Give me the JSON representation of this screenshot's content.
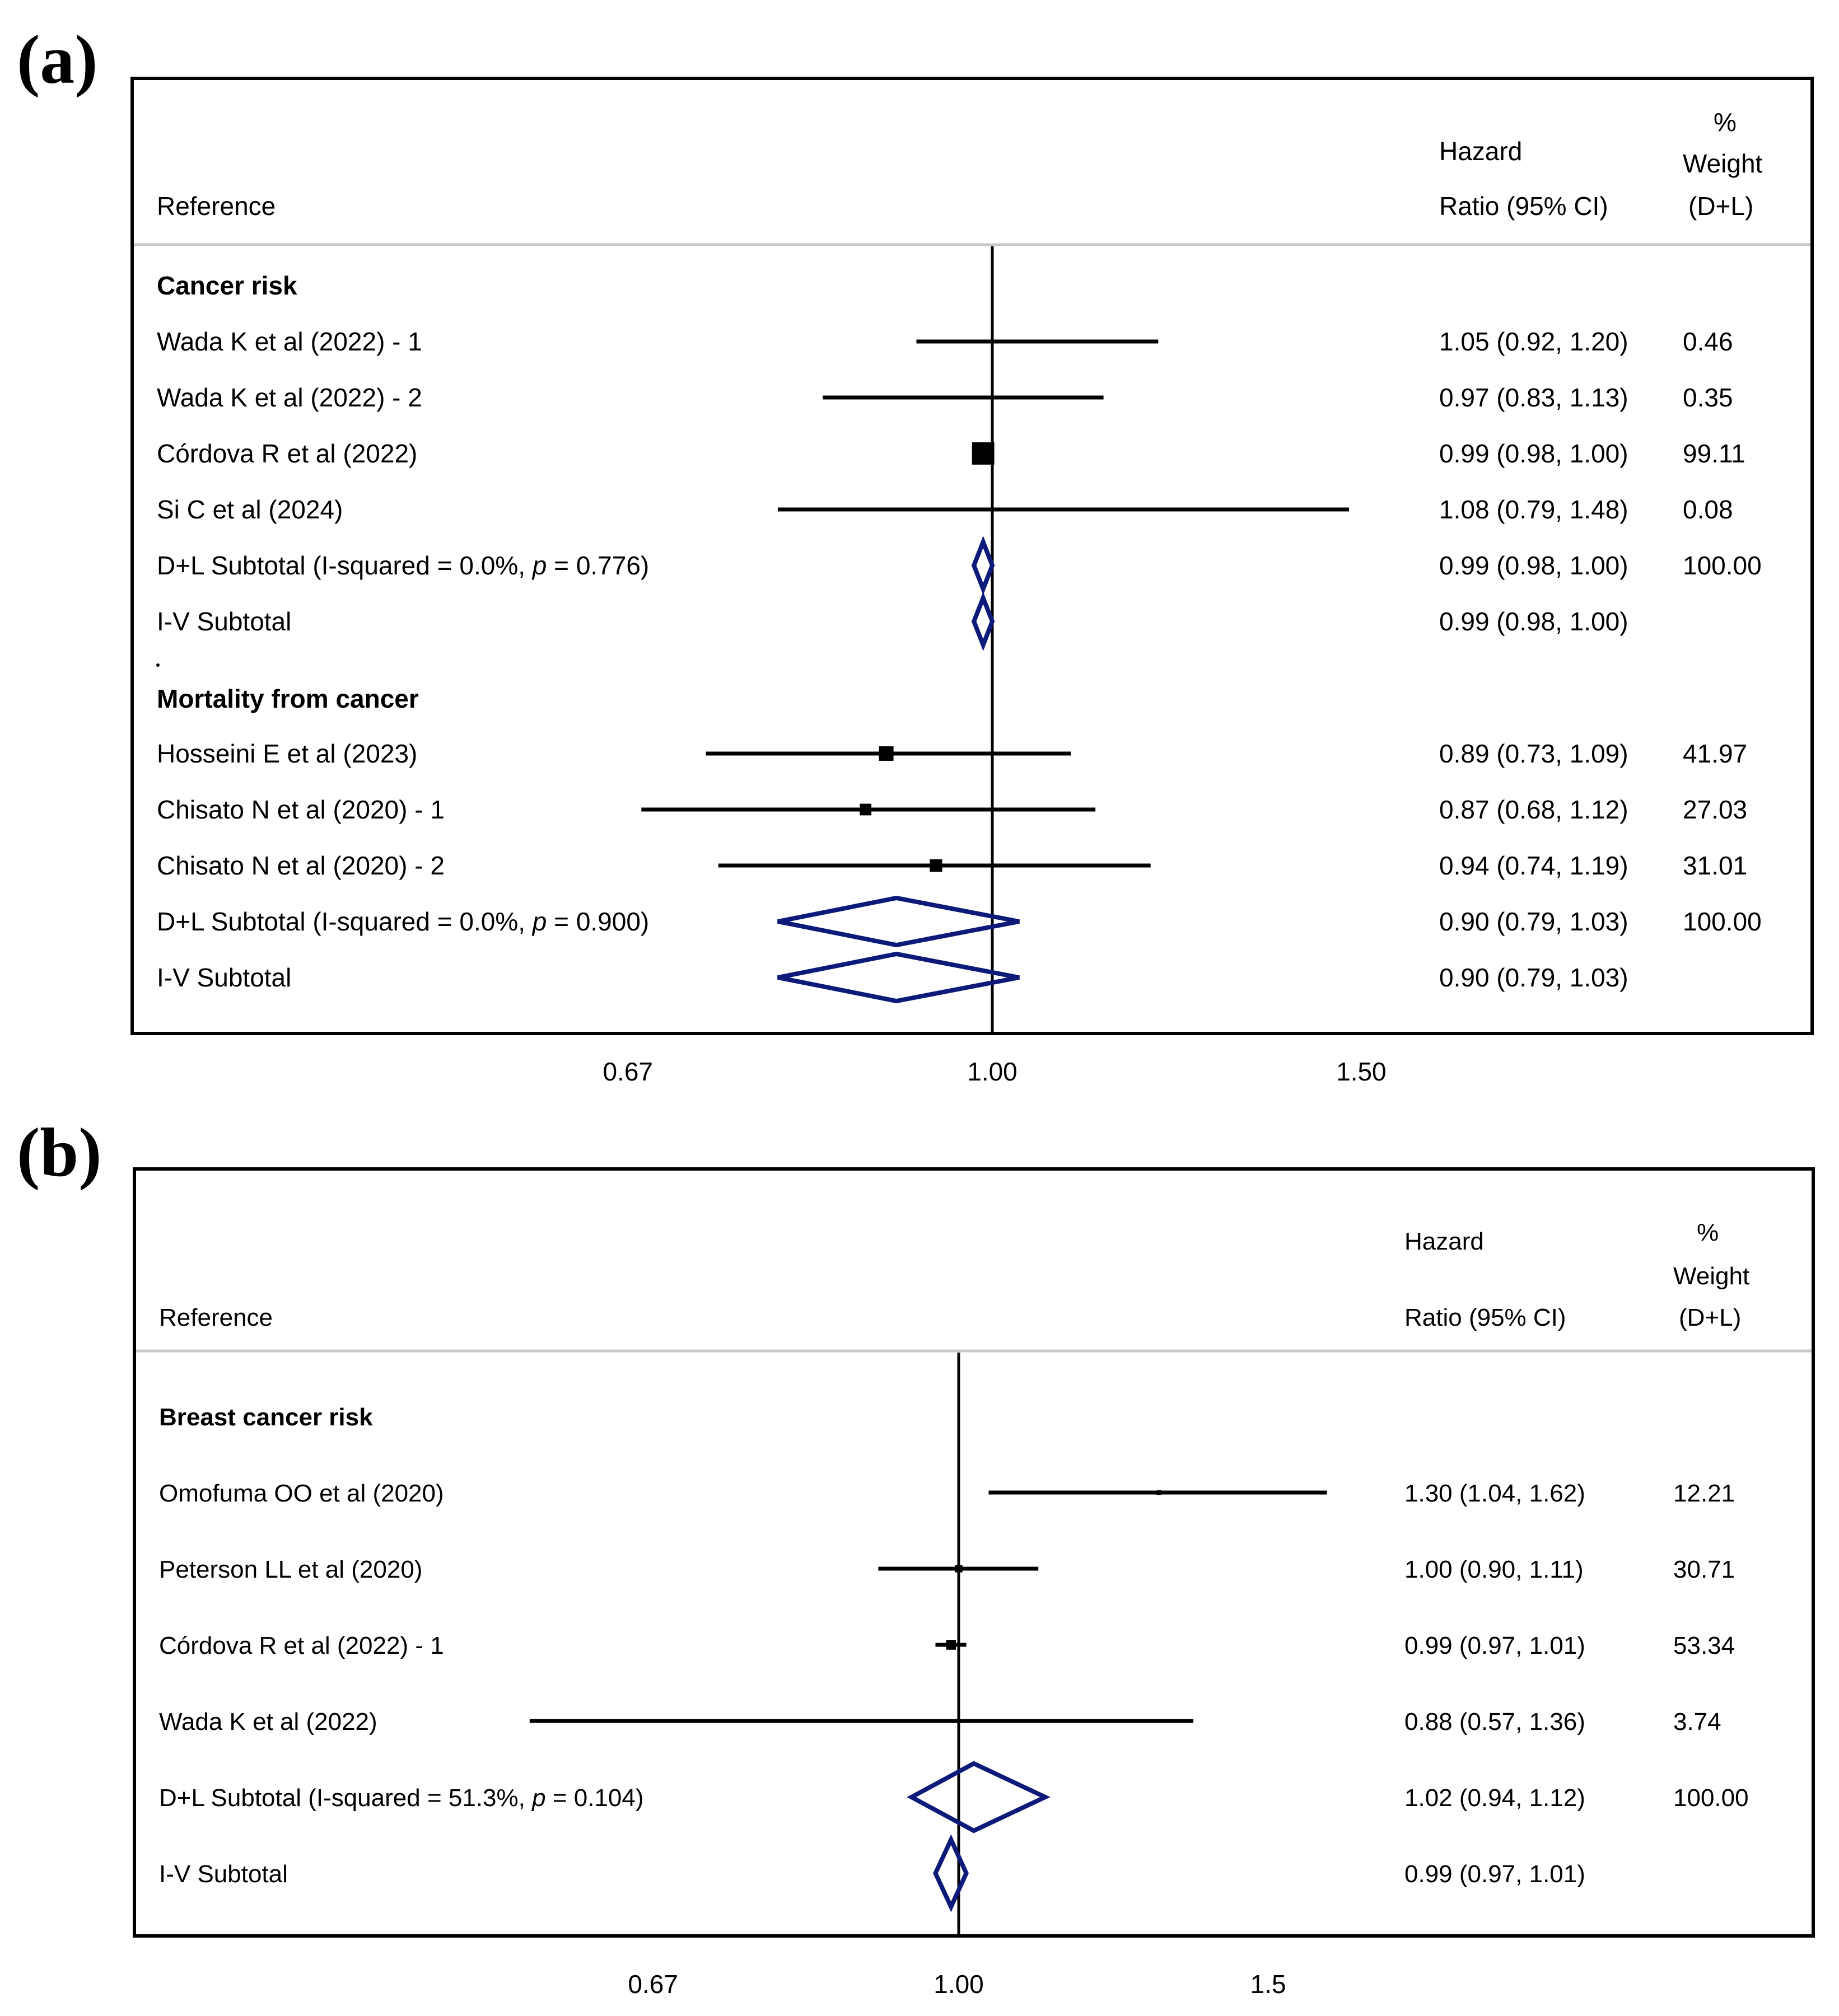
{
  "chart_data": [
    {
      "type": "forest",
      "panel_label": "(a)",
      "columns": {
        "reference": "Reference",
        "hr_line1": "Hazard",
        "hr_line2": "Ratio (95% CI)",
        "w_line1": "%",
        "w_line2": "Weight",
        "w_line3": "(D+L)"
      },
      "axis": {
        "scale": "log",
        "ticks": [
          "0.67",
          "1.00",
          "1.50"
        ],
        "tick_values": [
          0.67,
          1.0,
          1.5
        ],
        "reference": 1.0
      },
      "groups": [
        {
          "title": "Cancer risk",
          "studies": [
            {
              "label": "Wada K et al (2022) - 1",
              "hr": 1.05,
              "lo": 0.92,
              "hi": 1.2,
              "ci_text": "1.05 (0.92, 1.20)",
              "weight": "0.46"
            },
            {
              "label": "Wada K et al (2022) - 2",
              "hr": 0.97,
              "lo": 0.83,
              "hi": 1.13,
              "ci_text": "0.97 (0.83, 1.13)",
              "weight": "0.35"
            },
            {
              "label": "Córdova R et al (2022)",
              "hr": 0.99,
              "lo": 0.98,
              "hi": 1.0,
              "ci_text": "0.99 (0.98, 1.00)",
              "weight": "99.11"
            },
            {
              "label": "Si C et al (2024)",
              "hr": 1.08,
              "lo": 0.79,
              "hi": 1.48,
              "ci_text": "1.08 (0.79, 1.48)",
              "weight": "0.08"
            }
          ],
          "subtotals": [
            {
              "label": "D+L Subtotal  (I-squared = 0.0%, ",
              "p_symbol": "p",
              "p_text": " = 0.776)",
              "hr": 0.99,
              "lo": 0.98,
              "hi": 1.0,
              "ci_text": "0.99 (0.98, 1.00)",
              "weight": "100.00"
            },
            {
              "label": "I-V Subtotal",
              "p_symbol": "",
              "p_text": "",
              "hr": 0.99,
              "lo": 0.98,
              "hi": 1.0,
              "ci_text": "0.99 (0.98, 1.00)",
              "weight": ""
            }
          ]
        },
        {
          "title": "Mortality from cancer",
          "studies": [
            {
              "label": "Hosseini E et al (2023)",
              "hr": 0.89,
              "lo": 0.73,
              "hi": 1.09,
              "ci_text": "0.89 (0.73, 1.09)",
              "weight": "41.97"
            },
            {
              "label": "Chisato N et al (2020) - 1",
              "hr": 0.87,
              "lo": 0.68,
              "hi": 1.12,
              "ci_text": "0.87 (0.68, 1.12)",
              "weight": "27.03"
            },
            {
              "label": "Chisato N et al (2020) - 2",
              "hr": 0.94,
              "lo": 0.74,
              "hi": 1.19,
              "ci_text": "0.94 (0.74, 1.19)",
              "weight": "31.01"
            }
          ],
          "subtotals": [
            {
              "label": "D+L Subtotal  (I-squared = 0.0%, ",
              "p_symbol": "p",
              "p_text": " = 0.900)",
              "hr": 0.9,
              "lo": 0.79,
              "hi": 1.03,
              "ci_text": "0.90 (0.79, 1.03)",
              "weight": "100.00"
            },
            {
              "label": "I-V Subtotal",
              "p_symbol": "",
              "p_text": "",
              "hr": 0.9,
              "lo": 0.79,
              "hi": 1.03,
              "ci_text": "0.90 (0.79, 1.03)",
              "weight": ""
            }
          ]
        }
      ]
    },
    {
      "type": "forest",
      "panel_label": "(b)",
      "columns": {
        "reference": "Reference",
        "hr_line1": "Hazard",
        "hr_line2": "Ratio (95% CI)",
        "w_line1": "%",
        "w_line2": "Weight",
        "w_line3": "(D+L)"
      },
      "axis": {
        "scale": "log",
        "ticks": [
          "0.67",
          "1.00",
          "1.5"
        ],
        "tick_values": [
          0.67,
          1.0,
          1.5
        ],
        "reference": 1.0
      },
      "groups": [
        {
          "title": "Breast cancer risk",
          "studies": [
            {
              "label": "Omofuma OO et al (2020)",
              "hr": 1.3,
              "lo": 1.04,
              "hi": 1.62,
              "ci_text": "1.30 (1.04, 1.62)",
              "weight": "12.21"
            },
            {
              "label": "Peterson LL et al (2020)",
              "hr": 1.0,
              "lo": 0.9,
              "hi": 1.11,
              "ci_text": "1.00 (0.90, 1.11)",
              "weight": "30.71"
            },
            {
              "label": "Córdova R et al (2022) - 1",
              "hr": 0.99,
              "lo": 0.97,
              "hi": 1.01,
              "ci_text": "0.99 (0.97, 1.01)",
              "weight": "53.34"
            },
            {
              "label": "Wada K et al (2022)",
              "hr": 0.88,
              "lo": 0.57,
              "hi": 1.36,
              "ci_text": "0.88 (0.57, 1.36)",
              "weight": "3.74"
            }
          ],
          "subtotals": [
            {
              "label": "D+L Subtotal  (I-squared = 51.3%, ",
              "p_symbol": "p",
              "p_text": " = 0.104)",
              "hr": 1.02,
              "lo": 0.94,
              "hi": 1.12,
              "ci_text": "1.02 (0.94, 1.12)",
              "weight": "100.00"
            },
            {
              "label": "I-V Subtotal",
              "p_symbol": "",
              "p_text": "",
              "hr": 0.99,
              "lo": 0.97,
              "hi": 1.01,
              "ci_text": "0.99 (0.97, 1.01)",
              "weight": ""
            }
          ]
        }
      ]
    }
  ]
}
